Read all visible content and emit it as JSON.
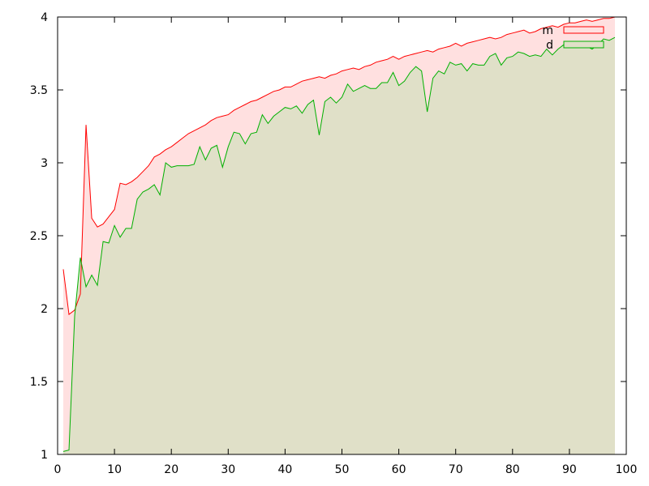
{
  "chart_data": {
    "type": "area",
    "title": "",
    "xlabel": "",
    "ylabel": "",
    "xlim": [
      0,
      100
    ],
    "ylim": [
      1,
      4
    ],
    "x_ticks": [
      "0",
      "10",
      "20",
      "30",
      "40",
      "50",
      "60",
      "70",
      "80",
      "90",
      "100"
    ],
    "y_ticks": [
      "1",
      "1.5",
      "2",
      "2.5",
      "3",
      "3.5",
      "4"
    ],
    "legend_position": "top-right",
    "grid": false,
    "x": [
      1,
      2,
      3,
      4,
      5,
      6,
      7,
      8,
      9,
      10,
      11,
      12,
      13,
      14,
      15,
      16,
      17,
      18,
      19,
      20,
      21,
      22,
      23,
      24,
      25,
      26,
      27,
      28,
      29,
      30,
      31,
      32,
      33,
      34,
      35,
      36,
      37,
      38,
      39,
      40,
      41,
      42,
      43,
      44,
      45,
      46,
      47,
      48,
      49,
      50,
      51,
      52,
      53,
      54,
      55,
      56,
      57,
      58,
      59,
      60,
      61,
      62,
      63,
      64,
      65,
      66,
      67,
      68,
      69,
      70,
      71,
      72,
      73,
      74,
      75,
      76,
      77,
      78,
      79,
      80,
      81,
      82,
      83,
      84,
      85,
      86,
      87,
      88,
      89,
      90,
      91,
      92,
      93,
      94,
      95,
      96,
      97,
      98
    ],
    "series": [
      {
        "name": "m",
        "line_color": "#ff0000",
        "fill_color": "#ffe0e0",
        "values": [
          2.27,
          1.96,
          1.99,
          2.1,
          3.26,
          2.62,
          2.56,
          2.58,
          2.63,
          2.68,
          2.86,
          2.85,
          2.87,
          2.9,
          2.94,
          2.98,
          3.04,
          3.06,
          3.09,
          3.11,
          3.14,
          3.17,
          3.2,
          3.22,
          3.24,
          3.26,
          3.29,
          3.31,
          3.32,
          3.33,
          3.36,
          3.38,
          3.4,
          3.42,
          3.43,
          3.45,
          3.47,
          3.49,
          3.5,
          3.52,
          3.52,
          3.54,
          3.56,
          3.57,
          3.58,
          3.59,
          3.58,
          3.6,
          3.61,
          3.63,
          3.64,
          3.65,
          3.64,
          3.66,
          3.67,
          3.69,
          3.7,
          3.71,
          3.73,
          3.71,
          3.73,
          3.74,
          3.75,
          3.76,
          3.77,
          3.76,
          3.78,
          3.79,
          3.8,
          3.82,
          3.8,
          3.82,
          3.83,
          3.84,
          3.85,
          3.86,
          3.85,
          3.86,
          3.88,
          3.89,
          3.9,
          3.91,
          3.89,
          3.9,
          3.92,
          3.93,
          3.94,
          3.93,
          3.95,
          3.96,
          3.96,
          3.97,
          3.98,
          3.97,
          3.98,
          3.99,
          3.99,
          4.0
        ]
      },
      {
        "name": "d",
        "line_color": "#00b000",
        "fill_color": "#e0e0c8",
        "values": [
          1.02,
          1.03,
          1.95,
          2.35,
          2.15,
          2.23,
          2.16,
          2.46,
          2.45,
          2.57,
          2.49,
          2.55,
          2.55,
          2.75,
          2.8,
          2.82,
          2.85,
          2.78,
          3.0,
          2.97,
          2.98,
          2.98,
          2.98,
          2.99,
          3.11,
          3.02,
          3.1,
          3.12,
          2.97,
          3.11,
          3.21,
          3.2,
          3.13,
          3.2,
          3.21,
          3.33,
          3.27,
          3.32,
          3.35,
          3.38,
          3.37,
          3.39,
          3.34,
          3.4,
          3.43,
          3.19,
          3.42,
          3.45,
          3.41,
          3.45,
          3.54,
          3.49,
          3.51,
          3.53,
          3.51,
          3.51,
          3.55,
          3.55,
          3.62,
          3.53,
          3.56,
          3.62,
          3.66,
          3.63,
          3.35,
          3.58,
          3.63,
          3.61,
          3.69,
          3.67,
          3.68,
          3.63,
          3.68,
          3.67,
          3.67,
          3.73,
          3.75,
          3.67,
          3.72,
          3.73,
          3.76,
          3.75,
          3.73,
          3.74,
          3.73,
          3.78,
          3.74,
          3.78,
          3.81,
          3.8,
          3.79,
          3.8,
          3.8,
          3.78,
          3.81,
          3.85,
          3.84,
          3.86
        ]
      }
    ]
  }
}
